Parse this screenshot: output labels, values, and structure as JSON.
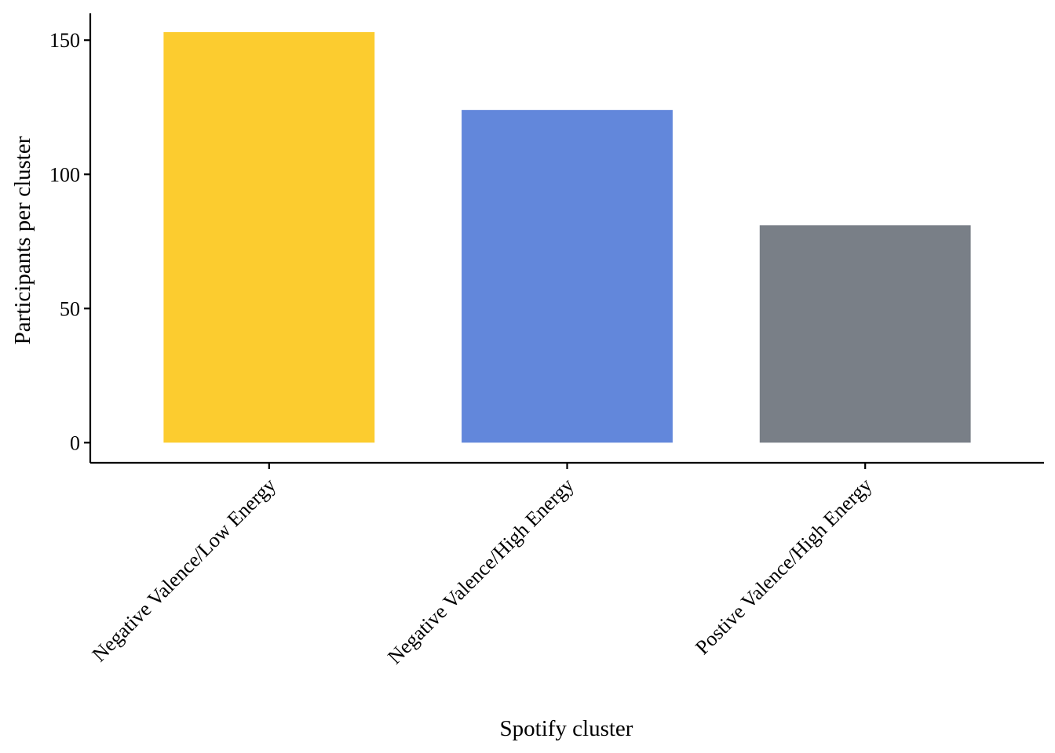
{
  "chart_data": {
    "type": "bar",
    "title": "",
    "xlabel": "Spotify cluster",
    "ylabel": "Participants per cluster",
    "categories": [
      "Negative Valence/Low Energy",
      "Negative Valence/High Energy",
      "Postive Valence/High Energy"
    ],
    "values": [
      153,
      124,
      81
    ],
    "colors": [
      "#FCCC2F",
      "#6287DB",
      "#797F87"
    ],
    "yticks": [
      0,
      50,
      100,
      150
    ],
    "ylim": [
      -7.5,
      160
    ],
    "grid": false,
    "legend": "none"
  }
}
